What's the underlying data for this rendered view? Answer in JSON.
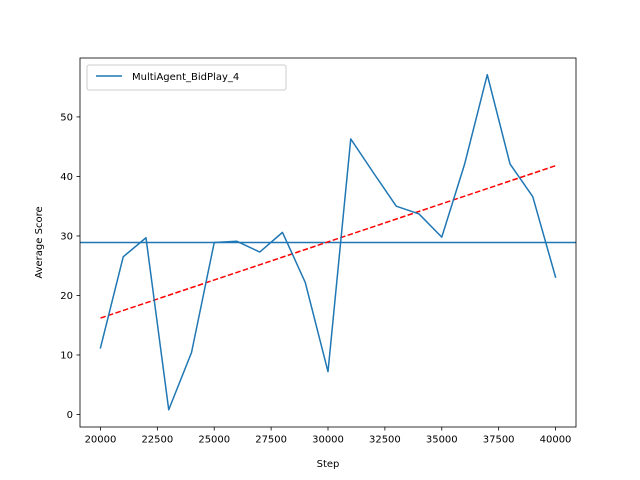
{
  "chart_data": {
    "type": "line",
    "xlabel": "Step",
    "ylabel": "Average Score",
    "xlim": [
      19100,
      40900
    ],
    "ylim": [
      -2.1,
      59.9
    ],
    "xticks": [
      20000,
      22500,
      25000,
      27500,
      30000,
      32500,
      35000,
      37500,
      40000
    ],
    "xtick_labels": [
      "20000",
      "22500",
      "25000",
      "27500",
      "30000",
      "32500",
      "35000",
      "37500",
      "40000"
    ],
    "yticks": [
      0,
      10,
      20,
      30,
      40,
      50
    ],
    "ytick_labels": [
      "0",
      "10",
      "20",
      "30",
      "40",
      "50"
    ],
    "grid": false,
    "legend_position": "upper left",
    "series": [
      {
        "name": "MultiAgent_BidPlay_4",
        "color": "#1f77b4",
        "style": "solid",
        "x": [
          20000,
          21000,
          22000,
          23000,
          24000,
          25000,
          26000,
          27000,
          28000,
          29000,
          30000,
          31000,
          32000,
          33000,
          34000,
          35000,
          36000,
          37000,
          38000,
          39000,
          40000
        ],
        "y": [
          11.2,
          26.5,
          29.7,
          0.8,
          10.4,
          28.9,
          29.1,
          27.3,
          30.6,
          22.2,
          7.2,
          46.3,
          40.6,
          35.0,
          33.7,
          29.8,
          42.0,
          57.1,
          42.1,
          36.6,
          23.1
        ]
      }
    ],
    "reference_lines": [
      {
        "kind": "horizontal",
        "y": 28.9,
        "color": "#1f77b4",
        "style": "solid"
      },
      {
        "kind": "trend",
        "x": [
          20000,
          40000
        ],
        "y": [
          16.2,
          41.8
        ],
        "color": "#ff0000",
        "style": "dashed"
      }
    ]
  }
}
